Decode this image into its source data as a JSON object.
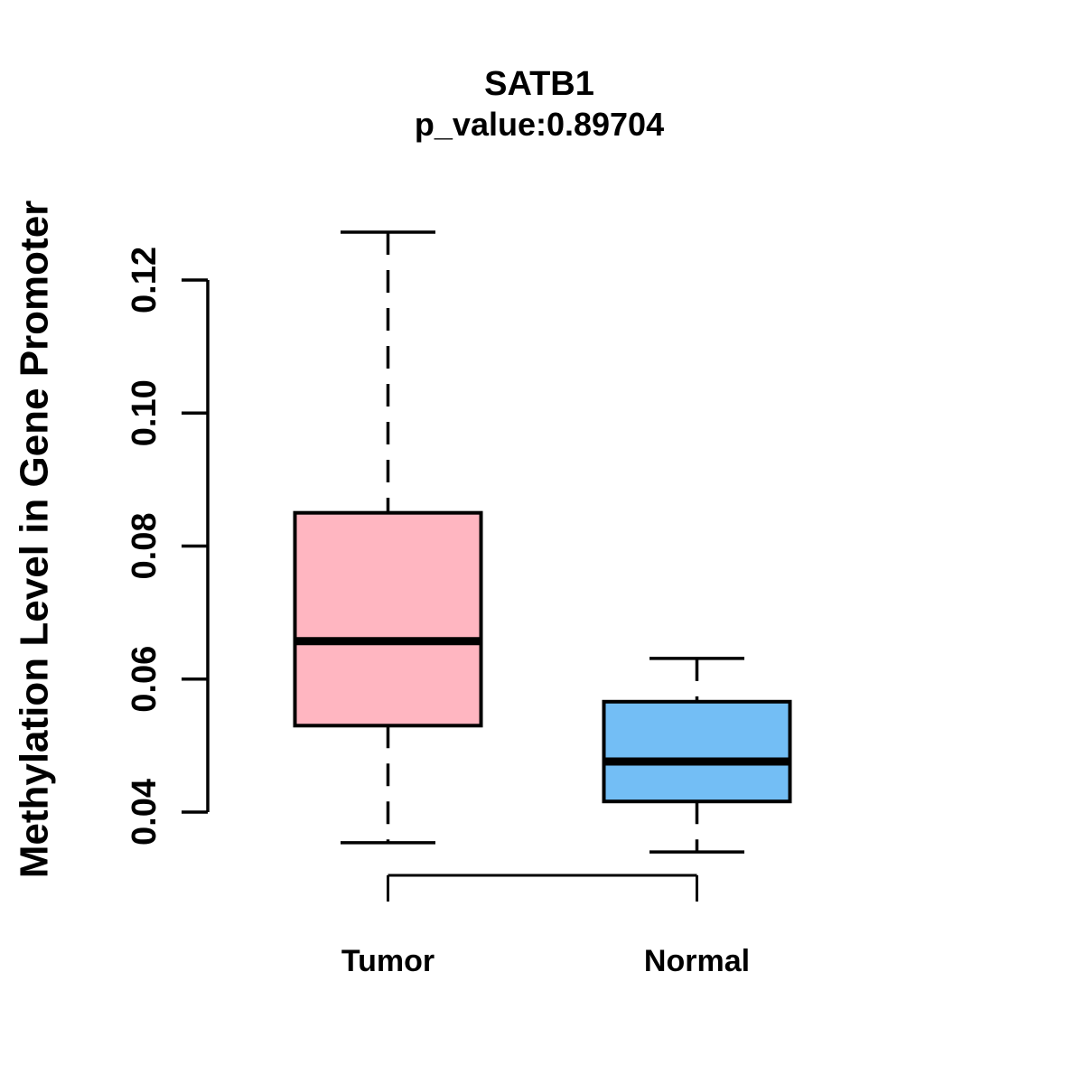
{
  "chart_data": {
    "type": "boxplot",
    "title": "SATB1",
    "subtitle": "p_value:0.89704",
    "ylabel": "Methylation Level in Gene Promoter",
    "xlabel": "",
    "ylim": [
      0.03,
      0.13
    ],
    "y_ticks": [
      0.04,
      0.06,
      0.08,
      0.1,
      0.12
    ],
    "y_tick_labels": [
      "0.04",
      "0.06",
      "0.08",
      "0.10",
      "0.12"
    ],
    "grid": false,
    "legend": false,
    "whisker_style": "dashed",
    "groups": [
      {
        "label": "Tumor",
        "fill_color": "#FFB6C1",
        "stats": {
          "whisker_low": 0.0354,
          "q1": 0.053,
          "median": 0.0657,
          "q3": 0.085,
          "whisker_high": 0.1272
        },
        "outliers": []
      },
      {
        "label": "Normal",
        "fill_color": "#73BEF5",
        "stats": {
          "whisker_low": 0.034,
          "q1": 0.0416,
          "median": 0.0476,
          "q3": 0.0566,
          "whisker_high": 0.0631
        },
        "outliers": []
      }
    ],
    "style": {
      "axis_color": "#000000",
      "box_border_color": "#000000",
      "median_color": "#000000",
      "background": "#ffffff"
    }
  }
}
